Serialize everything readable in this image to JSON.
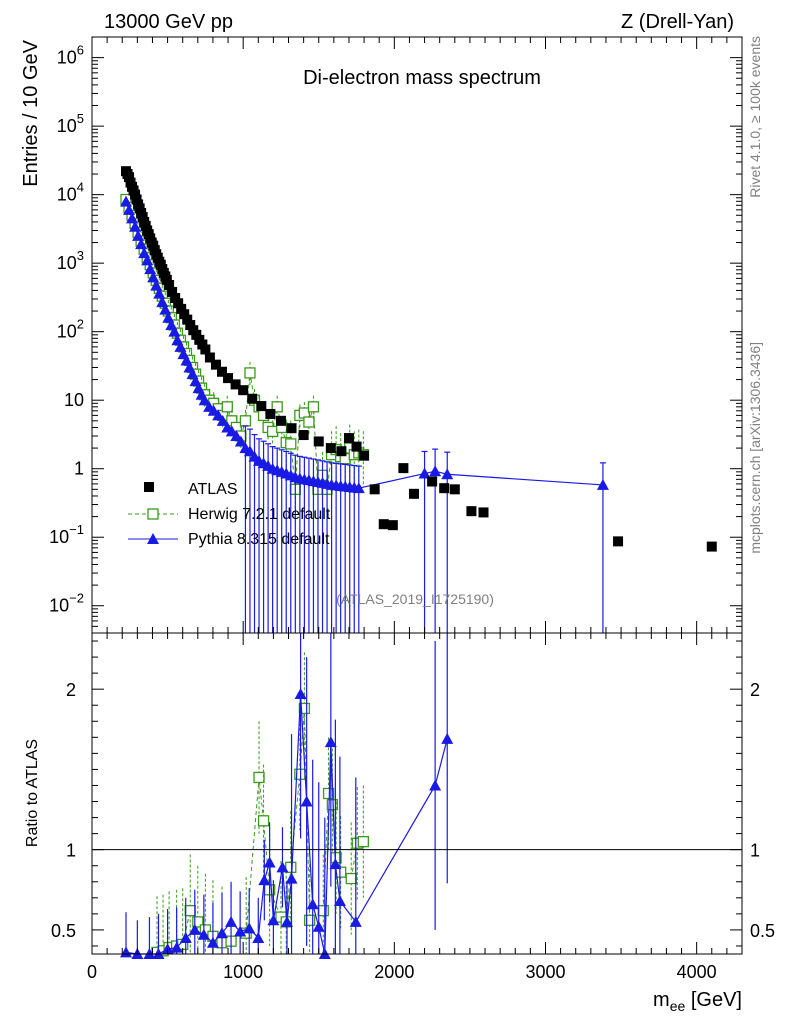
{
  "header": {
    "left": "13000 GeV pp",
    "right": "Z (Drell-Yan)"
  },
  "side": {
    "top": "Rivet 4.1.0, ≥ 100k events",
    "bottom": "mcplots.cern.ch [arXiv:1306.3436]"
  },
  "chart_data": {
    "type": "scatter",
    "title": "Di-electron mass spectrum",
    "watermark": "(ATLAS_2019_I1725190)",
    "xlabel": "m_ee [GeV]",
    "ylabel": "Entries / 10 GeV",
    "ratio_ylabel": "Ratio to ATLAS",
    "xlim": [
      0,
      4300
    ],
    "ylim": [
      0.004,
      2000000
    ],
    "yscale": "log",
    "ratio_ylim": [
      0.35,
      2.35
    ],
    "x_ticks": [
      0,
      1000,
      2000,
      3000,
      4000
    ],
    "x_tick_labels": [
      "0",
      "1000",
      "2000",
      "3000",
      "4000"
    ],
    "y_ticks": [
      0.01,
      0.1,
      1,
      10,
      100,
      1000,
      10000,
      100000,
      1000000
    ],
    "y_tick_labels": [
      {
        "base": "10",
        "exp": "−2"
      },
      {
        "base": "10",
        "exp": "−1"
      },
      {
        "base": "1",
        "exp": ""
      },
      {
        "base": "10",
        "exp": ""
      },
      {
        "base": "10",
        "exp": "2"
      },
      {
        "base": "10",
        "exp": "3"
      },
      {
        "base": "10",
        "exp": "4"
      },
      {
        "base": "10",
        "exp": "5"
      },
      {
        "base": "10",
        "exp": "6"
      }
    ],
    "ratio_ticks": [
      0.5,
      1,
      2
    ],
    "ratio_tick_labels": [
      "0.5",
      "1",
      "2"
    ],
    "legend": [
      "ATLAS",
      "Herwig 7.2.1 default",
      "Pythia 8.315 default"
    ],
    "legend_position": "lower-left",
    "colors": {
      "ATLAS": "#000000",
      "Herwig": "#3a9a1c",
      "Pythia": "#1a1ae6"
    },
    "series": [
      {
        "name": "ATLAS",
        "marker": "filled-square",
        "x": [
          225,
          235,
          245,
          255,
          265,
          275,
          285,
          295,
          305,
          315,
          325,
          335,
          345,
          355,
          365,
          375,
          385,
          395,
          405,
          415,
          425,
          435,
          445,
          455,
          465,
          475,
          485,
          495,
          510,
          530,
          550,
          570,
          590,
          610,
          630,
          650,
          670,
          690,
          710,
          730,
          750,
          780,
          820,
          860,
          900,
          950,
          1000,
          1060,
          1120,
          1180,
          1250,
          1320,
          1400,
          1500,
          1580,
          1650,
          1700,
          1750,
          1800,
          1870,
          1930,
          1990,
          2060,
          2130,
          2250,
          2330,
          2400,
          2510,
          2590,
          3480,
          4100
        ],
        "y": [
          22000,
          20000,
          18000,
          15000,
          13000,
          11500,
          10000,
          8500,
          7200,
          6300,
          5400,
          4700,
          4000,
          3500,
          3000,
          2650,
          2300,
          2000,
          1800,
          1550,
          1350,
          1200,
          1050,
          950,
          820,
          720,
          640,
          570,
          480,
          380,
          310,
          260,
          215,
          180,
          150,
          125,
          105,
          90,
          76,
          65,
          55,
          42,
          33,
          26,
          21,
          17,
          14,
          10.5,
          8.2,
          6.3,
          5.0,
          3.9,
          3.1,
          2.5,
          2.0,
          1.8,
          2.8,
          2.1,
          1.55,
          0.5,
          0.155,
          0.15,
          1.02,
          0.43,
          0.65,
          0.52,
          0.5,
          0.24,
          0.23,
          0.087,
          0.073
        ]
      },
      {
        "name": "Herwig 7.2.1 default",
        "marker": "open-square",
        "x": [
          225,
          245,
          265,
          285,
          305,
          325,
          345,
          365,
          385,
          405,
          425,
          445,
          465,
          485,
          505,
          525,
          545,
          565,
          585,
          605,
          625,
          645,
          665,
          685,
          705,
          725,
          745,
          775,
          805,
          835,
          865,
          895,
          925,
          955,
          985,
          1015,
          1045,
          1075,
          1105,
          1135,
          1165,
          1195,
          1225,
          1255,
          1285,
          1315,
          1345,
          1375,
          1405,
          1435,
          1465,
          1495,
          1525,
          1555,
          1585,
          1615,
          1645,
          1675,
          1705,
          1735,
          1765,
          1795
        ],
        "y": [
          8500,
          6500,
          5000,
          3800,
          2800,
          2100,
          1600,
          1200,
          950,
          720,
          560,
          430,
          330,
          260,
          200,
          160,
          125,
          95,
          75,
          60,
          48,
          38,
          30,
          24,
          19,
          15,
          12,
          10,
          9,
          7.5,
          6,
          8,
          5,
          4,
          3,
          5,
          25,
          10,
          8,
          6,
          4,
          3.5,
          8,
          4,
          2.4,
          2.3,
          0.5,
          6,
          6.5,
          4.8,
          8,
          0.5,
          0.8,
          0.5,
          1.6,
          1.9,
          1.5,
          1.4,
          2.0,
          1.6,
          1.7,
          1.6
        ]
      },
      {
        "name": "Pythia 8.315 default",
        "marker": "filled-triangle",
        "x": [
          225,
          245,
          265,
          285,
          305,
          325,
          345,
          365,
          385,
          405,
          425,
          445,
          465,
          485,
          505,
          525,
          545,
          565,
          585,
          605,
          625,
          645,
          665,
          685,
          705,
          725,
          745,
          775,
          805,
          835,
          865,
          895,
          925,
          955,
          985,
          1015,
          1045,
          1075,
          1105,
          1135,
          1165,
          1195,
          1225,
          1255,
          1285,
          1315,
          1345,
          1375,
          1405,
          1435,
          1465,
          1495,
          1525,
          1555,
          1585,
          1615,
          1645,
          1675,
          1705,
          1735,
          1765,
          2200,
          2270,
          2350,
          3380
        ],
        "y": [
          7900,
          6000,
          4500,
          3400,
          2500,
          1900,
          1400,
          1100,
          820,
          620,
          470,
          360,
          270,
          210,
          160,
          125,
          100,
          75,
          60,
          47,
          38,
          30,
          24,
          19,
          15,
          12,
          10,
          8,
          7,
          6,
          5,
          4,
          3.5,
          3,
          2.5,
          2,
          1.8,
          1.5,
          1.3,
          1.2,
          1.1,
          1.0,
          0.95,
          0.9,
          0.85,
          0.8,
          0.75,
          0.72,
          0.7,
          0.68,
          0.66,
          0.64,
          0.62,
          0.6,
          0.58,
          0.57,
          0.56,
          0.55,
          0.54,
          0.53,
          0.52,
          0.85,
          0.92,
          0.83,
          0.58
        ]
      }
    ],
    "ratio": [
      {
        "name": "Herwig 7.2.1 default",
        "x": [
          430,
          470,
          510,
          560,
          600,
          650,
          700,
          750,
          800,
          860,
          920,
          1020,
          1105,
          1135,
          1175,
          1250,
          1285,
          1315,
          1375,
          1405,
          1440,
          1530,
          1565,
          1590,
          1615,
          1645,
          1715,
          1755,
          1795
        ],
        "y": [
          0.36,
          0.37,
          0.39,
          0.4,
          0.41,
          0.62,
          0.55,
          0.5,
          0.46,
          0.42,
          0.43,
          0.48,
          1.45,
          1.18,
          0.75,
          0.58,
          0.55,
          0.89,
          1.47,
          1.88,
          0.56,
          0.62,
          1.35,
          1.28,
          0.95,
          0.86,
          0.82,
          1.04,
          1.05
        ]
      },
      {
        "name": "Pythia 8.315 default",
        "x": [
          225,
          300,
          380,
          440,
          500,
          560,
          620,
          680,
          740,
          800,
          860,
          920,
          980,
          1040,
          1100,
          1140,
          1175,
          1200,
          1260,
          1290,
          1320,
          1380,
          1420,
          1460,
          1500,
          1540,
          1580,
          1610,
          1640,
          1745,
          2270,
          2350
        ],
        "y": [
          0.36,
          0.31,
          0.33,
          0.35,
          0.38,
          0.39,
          0.45,
          0.5,
          0.47,
          0.42,
          0.48,
          0.55,
          0.49,
          0.51,
          0.45,
          0.81,
          0.92,
          0.56,
          0.89,
          0.55,
          0.82,
          1.97,
          1.3,
          0.66,
          0.52,
          0.3,
          1.67,
          0.91,
          0.68,
          0.55,
          1.4,
          1.69
        ]
      }
    ]
  }
}
